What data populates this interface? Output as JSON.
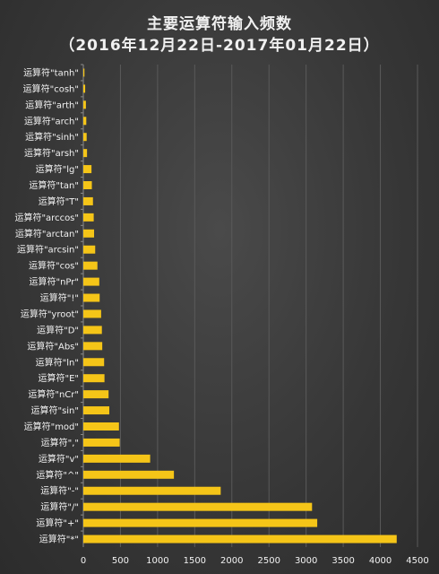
{
  "chart_data": {
    "type": "bar",
    "orientation": "horizontal",
    "title": "主要运算符输入频数",
    "subtitle": "（2016年12月22日-2017年01月22日）",
    "categories": [
      "运算符\"tanh\"",
      "运算符\"cosh\"",
      "运算符\"arth\"",
      "运算符\"arch\"",
      "运算符\"sinh\"",
      "运算符\"arsh\"",
      "运算符\"lg\"",
      "运算符\"tan\"",
      "运算符\"T\"",
      "运算符\"arccos\"",
      "运算符\"arctan\"",
      "运算符\"arcsin\"",
      "运算符\"cos\"",
      "运算符\"nPr\"",
      "运算符\"!\"",
      "运算符\"yroot\"",
      "运算符\"D\"",
      "运算符\"Abs\"",
      "运算符\"ln\"",
      "运算符\"E\"",
      "运算符\"nCr\"",
      "运算符\"sin\"",
      "运算符\"mod\"",
      "运算符\",\"",
      "运算符\"v\"",
      "运算符\"^\"",
      "运算符\"-\"",
      "运算符\"/\"",
      "运算符\"+\"",
      "运算符\"*\""
    ],
    "values": [
      15,
      25,
      35,
      40,
      45,
      50,
      110,
      115,
      130,
      140,
      145,
      160,
      190,
      215,
      220,
      240,
      250,
      255,
      280,
      285,
      340,
      350,
      480,
      490,
      900,
      1220,
      1850,
      3080,
      3150,
      4220
    ],
    "xlim": [
      0,
      4500
    ],
    "xticks": [
      0,
      500,
      1000,
      1500,
      2000,
      2500,
      3000,
      3500,
      4000,
      4500
    ],
    "grid": true,
    "bar_color": "#f5c518",
    "legend": "none"
  }
}
